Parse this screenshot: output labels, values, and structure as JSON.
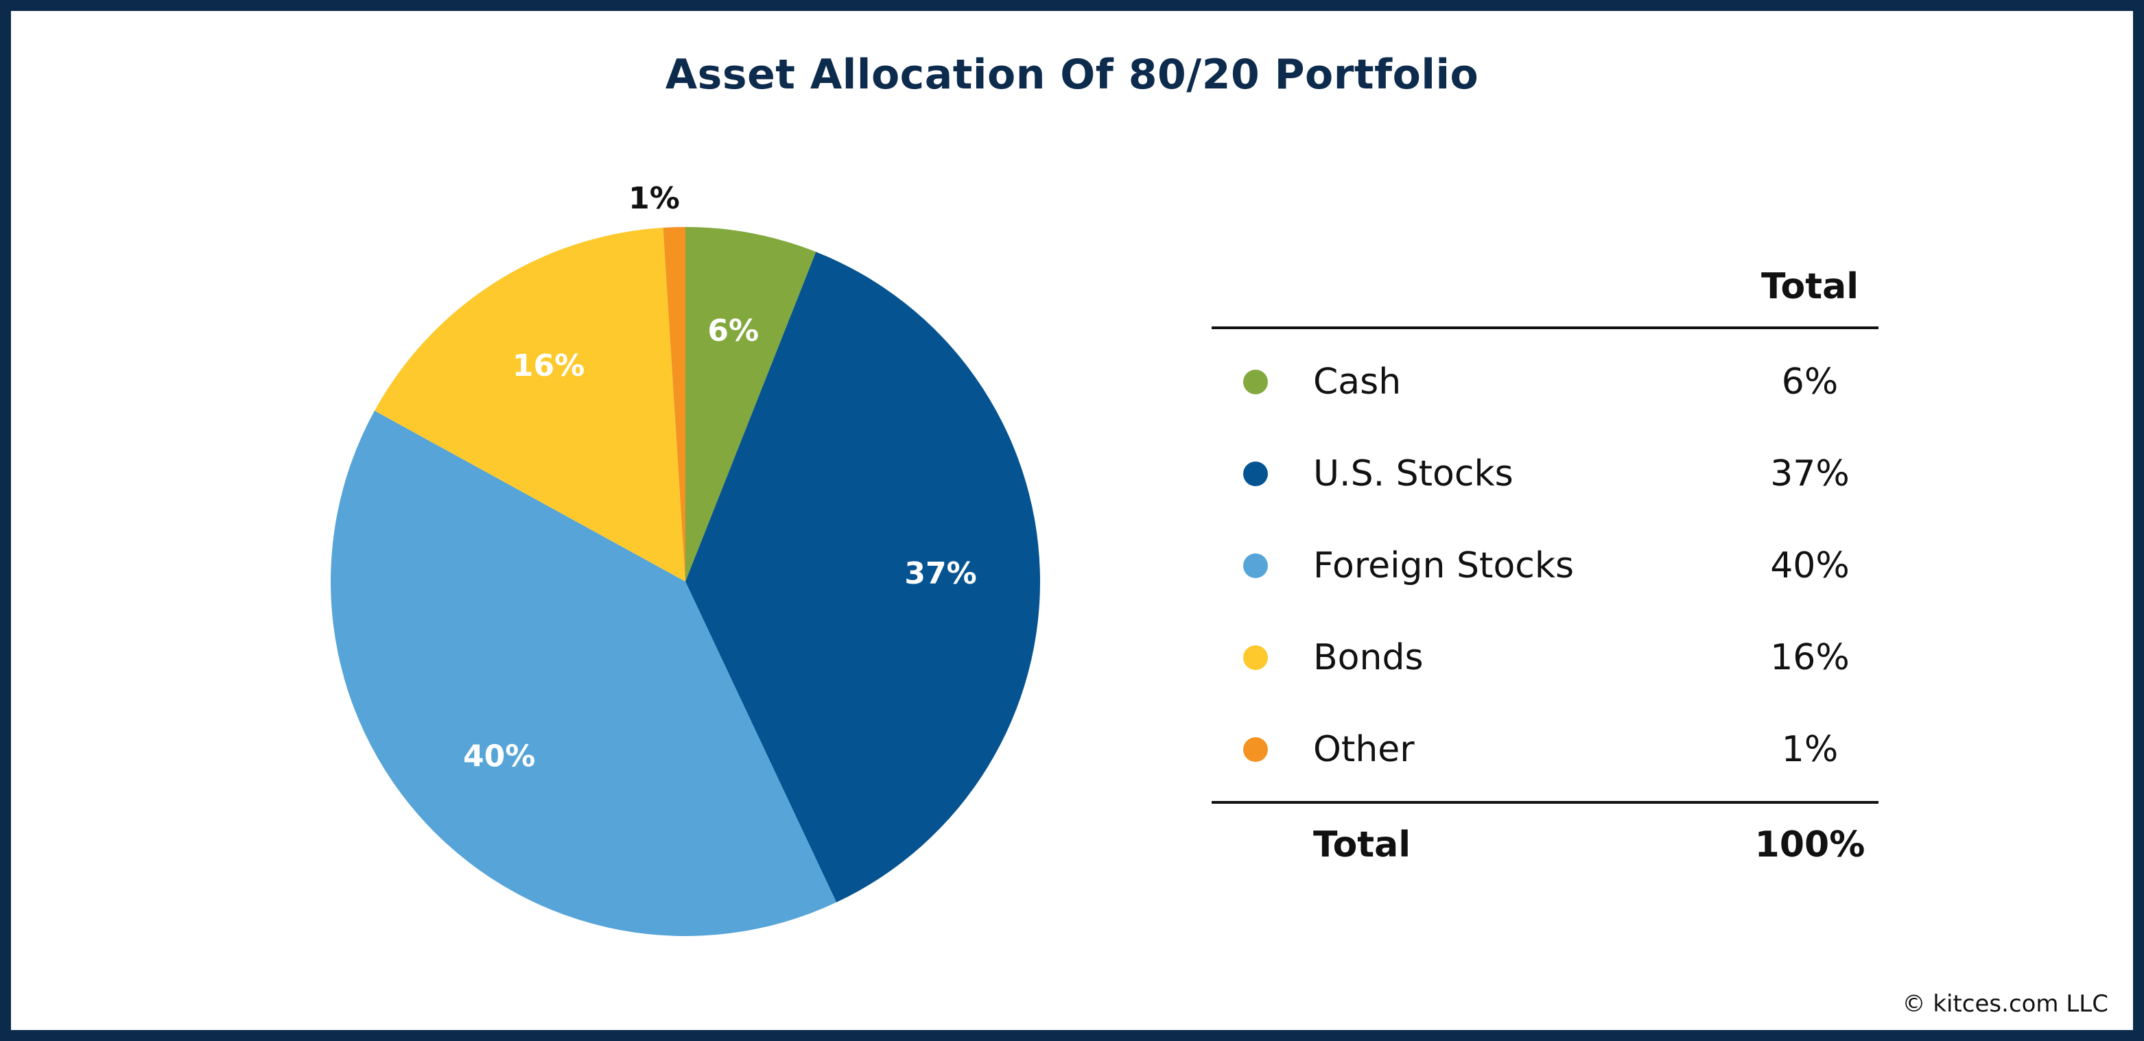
{
  "chart_data": {
    "type": "pie",
    "title": "Asset Allocation Of 80/20 Portfolio",
    "categories": [
      "Cash",
      "U.S. Stocks",
      "Foreign Stocks",
      "Bonds",
      "Other"
    ],
    "values": [
      6,
      37,
      40,
      16,
      1
    ],
    "labels": [
      "6%",
      "37%",
      "40%",
      "16%",
      "1%"
    ],
    "colors": [
      "#82a83e",
      "#055391",
      "#56a4d8",
      "#fdc92d",
      "#f49322"
    ],
    "label_colors": [
      "#ffffff",
      "#ffffff",
      "#ffffff",
      "#ffffff",
      "#111111"
    ]
  },
  "table": {
    "header_total": "Total",
    "rows": [
      {
        "name": "Cash",
        "value": "6%",
        "color": "#82a83e"
      },
      {
        "name": "U.S. Stocks",
        "value": "37%",
        "color": "#055391"
      },
      {
        "name": "Foreign Stocks",
        "value": "40%",
        "color": "#56a4d8"
      },
      {
        "name": "Bonds",
        "value": "16%",
        "color": "#fdc92d"
      },
      {
        "name": "Other",
        "value": "1%",
        "color": "#f49322"
      }
    ],
    "total_label": "Total",
    "total_value": "100%"
  },
  "footer": {
    "copyright": "© kitces.com LLC"
  }
}
